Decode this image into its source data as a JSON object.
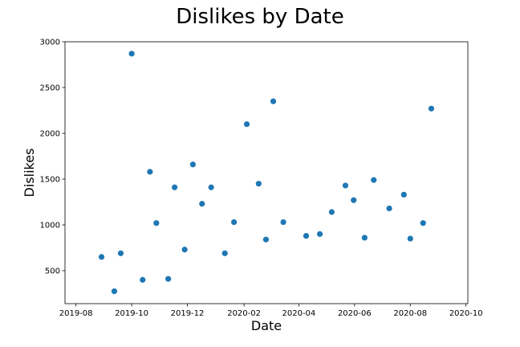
{
  "chart_data": {
    "type": "scatter",
    "title": "Dislikes by Date",
    "xlabel": "Date",
    "ylabel": "Dislikes",
    "x_ticks": [
      "2019-08",
      "2019-10",
      "2019-12",
      "2020-02",
      "2020-04",
      "2020-06",
      "2020-08",
      "2020-10"
    ],
    "y_ticks": [
      500,
      1000,
      1500,
      2000,
      2500,
      3000
    ],
    "xlim": [
      "2019-07-20",
      "2020-10-03"
    ],
    "ylim": [
      140,
      3000
    ],
    "grid": false,
    "marker_color": "#1f77b4",
    "points": [
      {
        "x": "2019-08-29",
        "y": 650
      },
      {
        "x": "2019-09-12",
        "y": 275
      },
      {
        "x": "2019-09-19",
        "y": 690
      },
      {
        "x": "2019-10-01",
        "y": 2870
      },
      {
        "x": "2019-10-13",
        "y": 400
      },
      {
        "x": "2019-10-21",
        "y": 1580
      },
      {
        "x": "2019-10-28",
        "y": 1020
      },
      {
        "x": "2019-11-10",
        "y": 410
      },
      {
        "x": "2019-11-17",
        "y": 1410
      },
      {
        "x": "2019-11-28",
        "y": 730
      },
      {
        "x": "2019-12-07",
        "y": 1660
      },
      {
        "x": "2019-12-17",
        "y": 1230
      },
      {
        "x": "2019-12-27",
        "y": 1410
      },
      {
        "x": "2020-01-11",
        "y": 690
      },
      {
        "x": "2020-01-21",
        "y": 1030
      },
      {
        "x": "2020-02-04",
        "y": 2100
      },
      {
        "x": "2020-02-17",
        "y": 1450
      },
      {
        "x": "2020-02-25",
        "y": 840
      },
      {
        "x": "2020-03-04",
        "y": 2350
      },
      {
        "x": "2020-03-15",
        "y": 1030
      },
      {
        "x": "2020-04-09",
        "y": 880
      },
      {
        "x": "2020-04-24",
        "y": 900
      },
      {
        "x": "2020-05-07",
        "y": 1140
      },
      {
        "x": "2020-05-22",
        "y": 1430
      },
      {
        "x": "2020-05-31",
        "y": 1270
      },
      {
        "x": "2020-06-12",
        "y": 860
      },
      {
        "x": "2020-06-22",
        "y": 1490
      },
      {
        "x": "2020-07-09",
        "y": 1180
      },
      {
        "x": "2020-07-25",
        "y": 1330
      },
      {
        "x": "2020-08-01",
        "y": 850
      },
      {
        "x": "2020-08-15",
        "y": 1020
      },
      {
        "x": "2020-08-24",
        "y": 2270
      }
    ]
  }
}
